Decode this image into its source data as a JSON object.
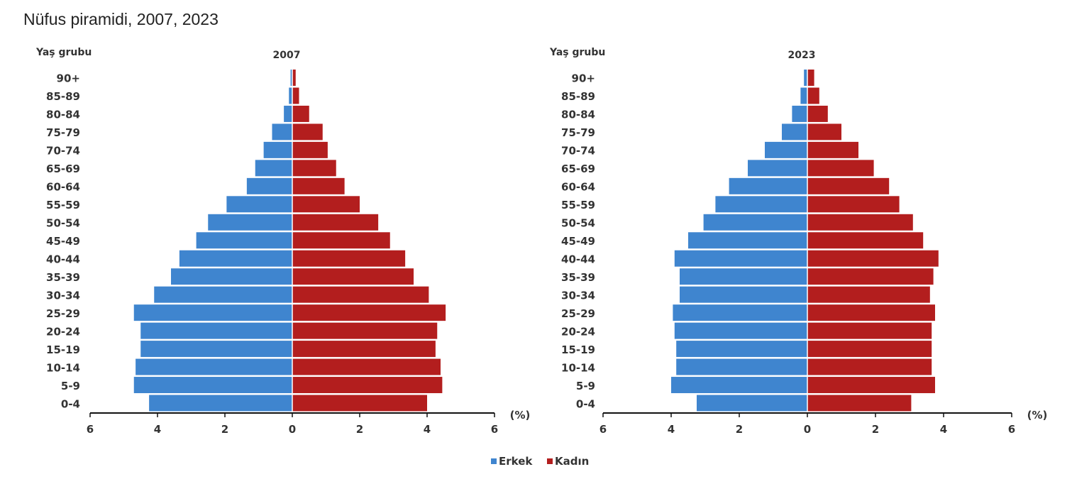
{
  "title": "Nüfus piramidi, 2007, 2023",
  "colors": {
    "male": "#3f85cf",
    "female": "#b31e1e"
  },
  "chart_data": [
    {
      "type": "bar",
      "orientation": "horizontal-pyramid",
      "title": "2007",
      "ylabel": "Yaş grubu",
      "xlabel": "(%)",
      "xlim": [
        -6,
        6
      ],
      "xticks": [
        6,
        4,
        2,
        0,
        2,
        4,
        6
      ],
      "categories": [
        "90+",
        "85-89",
        "80-84",
        "75-79",
        "70-74",
        "65-69",
        "60-64",
        "55-59",
        "50-54",
        "45-49",
        "40-44",
        "35-39",
        "30-34",
        "25-29",
        "20-24",
        "15-19",
        "10-14",
        "5-9",
        "0-4"
      ],
      "series": [
        {
          "name": "Erkek",
          "values": [
            0.05,
            0.1,
            0.25,
            0.6,
            0.85,
            1.1,
            1.35,
            1.95,
            2.5,
            2.85,
            3.35,
            3.6,
            4.1,
            4.7,
            4.5,
            4.5,
            4.65,
            4.7,
            4.25
          ]
        },
        {
          "name": "Kadın",
          "values": [
            0.1,
            0.2,
            0.5,
            0.9,
            1.05,
            1.3,
            1.55,
            2.0,
            2.55,
            2.9,
            3.35,
            3.6,
            4.05,
            4.55,
            4.3,
            4.25,
            4.4,
            4.45,
            4.0
          ]
        }
      ],
      "legend": "bottom-center"
    },
    {
      "type": "bar",
      "orientation": "horizontal-pyramid",
      "title": "2023",
      "ylabel": "Yaş grubu",
      "xlabel": "(%)",
      "xlim": [
        -6,
        6
      ],
      "xticks": [
        6,
        4,
        2,
        0,
        2,
        4,
        6
      ],
      "categories": [
        "90+",
        "85-89",
        "80-84",
        "75-79",
        "70-74",
        "65-69",
        "60-64",
        "55-59",
        "50-54",
        "45-49",
        "40-44",
        "35-39",
        "30-34",
        "25-29",
        "20-24",
        "15-19",
        "10-14",
        "5-9",
        "0-4"
      ],
      "series": [
        {
          "name": "Erkek",
          "values": [
            0.1,
            0.2,
            0.45,
            0.75,
            1.25,
            1.75,
            2.3,
            2.7,
            3.05,
            3.5,
            3.9,
            3.75,
            3.75,
            3.95,
            3.9,
            3.85,
            3.85,
            4.0,
            3.25
          ]
        },
        {
          "name": "Kadın",
          "values": [
            0.2,
            0.35,
            0.6,
            1.0,
            1.5,
            1.95,
            2.4,
            2.7,
            3.1,
            3.4,
            3.85,
            3.7,
            3.6,
            3.75,
            3.65,
            3.65,
            3.65,
            3.75,
            3.05
          ]
        }
      ],
      "legend": "bottom-center"
    }
  ]
}
